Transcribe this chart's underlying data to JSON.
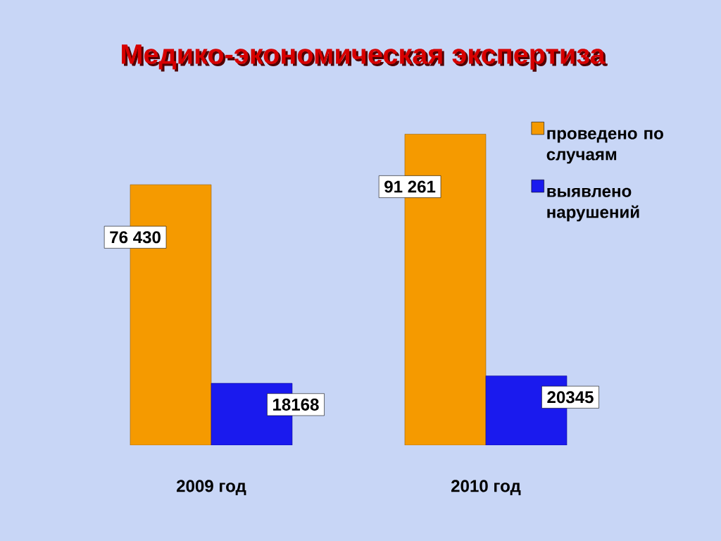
{
  "chart_data": {
    "type": "bar",
    "title": "Медико-экономическая экспертиза",
    "categories": [
      "2009 год",
      "2010 год"
    ],
    "series": [
      {
        "name": "проведено по случаям",
        "color": "#f59a00",
        "values": [
          76430,
          91261
        ],
        "value_labels": [
          "76 430",
          "91 261"
        ]
      },
      {
        "name": "выявлено нарушений",
        "color": "#1a1aee",
        "values": [
          18168,
          20345
        ],
        "value_labels": [
          "18168",
          "20345"
        ]
      }
    ],
    "legend": "right"
  }
}
